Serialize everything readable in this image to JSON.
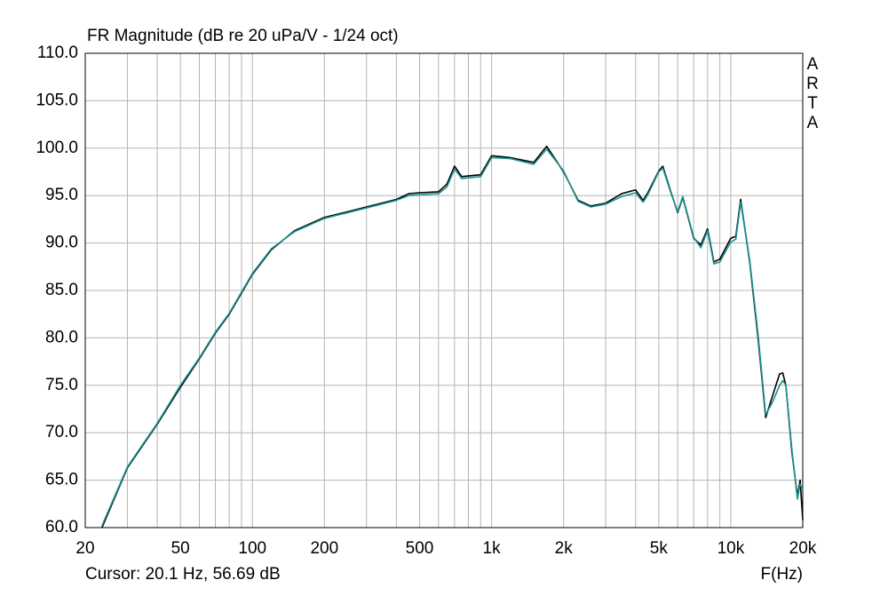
{
  "chart_data": {
    "type": "line",
    "title": "FR Magnitude (dB re 20 uPa/V - 1/24 oct)",
    "watermark": "ARTA",
    "x_label": "F(Hz)",
    "cursor": "Cursor: 20.1 Hz, 56.69 dB",
    "x_log": true,
    "grid": true,
    "xlim": [
      20,
      20000
    ],
    "ylim": [
      60,
      110
    ],
    "xticks": [
      20,
      50,
      100,
      200,
      500,
      {
        "value": 1000,
        "label": "1k"
      },
      {
        "value": 2000,
        "label": "2k"
      },
      {
        "value": 5000,
        "label": "5k"
      },
      {
        "value": 10000,
        "label": "10k"
      },
      {
        "value": 20000,
        "label": "20k"
      }
    ],
    "xminor": [
      30,
      40,
      60,
      70,
      80,
      90,
      300,
      400,
      600,
      700,
      800,
      900,
      3000,
      4000,
      6000,
      7000,
      8000,
      9000
    ],
    "yticks": [
      {
        "value": 60,
        "label": "60.0"
      },
      {
        "value": 65,
        "label": "65.0"
      },
      {
        "value": 70,
        "label": "70.0"
      },
      {
        "value": 75,
        "label": "75.0"
      },
      {
        "value": 80,
        "label": "80.0"
      },
      {
        "value": 85,
        "label": "85.0"
      },
      {
        "value": 90,
        "label": "90.0"
      },
      {
        "value": 95,
        "label": "95.0"
      },
      {
        "value": 100,
        "label": "100.0"
      },
      {
        "value": 105,
        "label": "105.0"
      },
      {
        "value": 110,
        "label": "110.0"
      }
    ],
    "x": [
      23.5,
      30,
      40,
      50,
      60,
      70,
      80,
      100,
      120,
      150,
      200,
      250,
      300,
      400,
      450,
      500,
      600,
      650,
      700,
      750,
      900,
      1000,
      1200,
      1500,
      1700,
      2000,
      2300,
      2600,
      3000,
      3500,
      4000,
      4300,
      4500,
      5000,
      5200,
      5600,
      6000,
      6300,
      7000,
      7500,
      8000,
      8500,
      9000,
      10000,
      10500,
      11000,
      12000,
      13000,
      14000,
      15000,
      16000,
      16500,
      17000,
      18000,
      19000,
      19500,
      20000
    ],
    "series": [
      {
        "color": "#000000",
        "values": [
          60,
          66.3,
          70.9,
          74.8,
          77.8,
          80.5,
          82.5,
          86.7,
          89.3,
          91.3,
          92.7,
          93.3,
          93.8,
          94.6,
          95.2,
          95.3,
          95.4,
          96.2,
          98.1,
          97.0,
          97.2,
          99.2,
          99.0,
          98.5,
          100.2,
          97.5,
          94.5,
          93.9,
          94.2,
          95.2,
          95.6,
          94.5,
          95.3,
          97.6,
          98.1,
          95.5,
          93.2,
          94.8,
          90.5,
          89.8,
          91.5,
          88.0,
          88.3,
          90.5,
          90.7,
          94.6,
          88.0,
          80.0,
          71.6,
          74.0,
          76.2,
          76.3,
          75.0,
          68.0,
          63.3,
          65.0,
          60.8
        ]
      },
      {
        "color": "#1a9090",
        "values": [
          60.2,
          66.4,
          71.0,
          75.0,
          77.9,
          80.6,
          82.6,
          86.8,
          89.4,
          91.2,
          92.6,
          93.2,
          93.7,
          94.5,
          95.0,
          95.1,
          95.2,
          95.9,
          97.8,
          96.8,
          97.0,
          99.0,
          98.9,
          98.3,
          99.9,
          97.6,
          94.4,
          93.8,
          94.1,
          94.9,
          95.3,
          94.3,
          95.1,
          97.5,
          97.9,
          95.4,
          93.3,
          94.9,
          90.6,
          89.5,
          91.3,
          87.8,
          88.0,
          90.1,
          90.4,
          94.3,
          88.2,
          80.4,
          71.9,
          73.3,
          75.0,
          75.5,
          75.0,
          68.3,
          63.0,
          64.6,
          64.0
        ]
      }
    ]
  }
}
